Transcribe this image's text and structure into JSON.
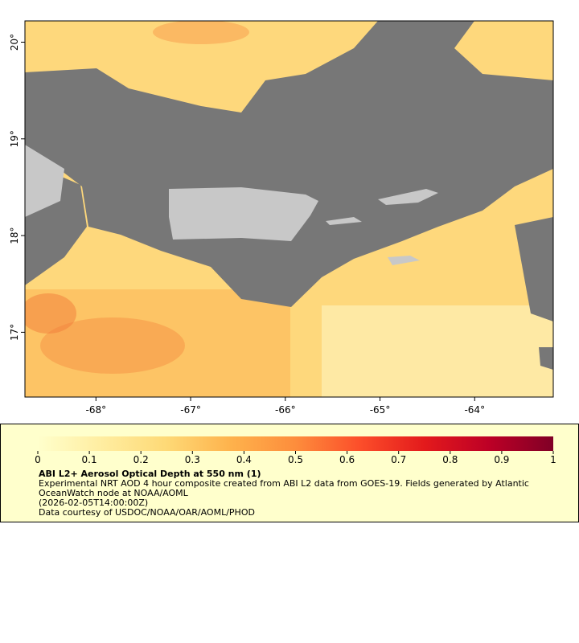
{
  "chart_data": {
    "type": "map",
    "xlim": [
      -68.75,
      -63.17
    ],
    "ylim": [
      16.33,
      20.22
    ],
    "xticks": [
      {
        "value": -68,
        "label": "-68°"
      },
      {
        "value": -67,
        "label": "-67°"
      },
      {
        "value": -66,
        "label": "-66°"
      },
      {
        "value": -65,
        "label": "-65°"
      },
      {
        "value": -64,
        "label": "-64°"
      }
    ],
    "yticks": [
      {
        "value": 17,
        "label": "17°"
      },
      {
        "value": 18,
        "label": "18°"
      },
      {
        "value": 19,
        "label": "19°"
      },
      {
        "value": 20,
        "label": "20°"
      }
    ],
    "colorbar": {
      "range": [
        0,
        1
      ],
      "ticks": [
        0,
        0.1,
        0.2,
        0.3,
        0.4,
        0.5,
        0.6,
        0.7,
        0.8,
        0.9,
        1
      ],
      "colors": [
        "#ffffcc",
        "#ffeda0",
        "#fed976",
        "#feb24c",
        "#fd8d3c",
        "#fc4e2a",
        "#e31a1c",
        "#bd0026",
        "#800026"
      ]
    },
    "title": "ABI L2+ Aerosol Optical Depth at 550 nm (1)",
    "description": "Experimental NRT AOD 4 hour composite created from ABI L2 data from GOES-19. Fields generated by Atlantic OceanWatch node at NOAA/AOML",
    "timestamp": "(2026-02-05T14:00:00Z)",
    "credit": "Data courtesy of USDOC/NOAA/OAR/AOML/PHOD"
  }
}
